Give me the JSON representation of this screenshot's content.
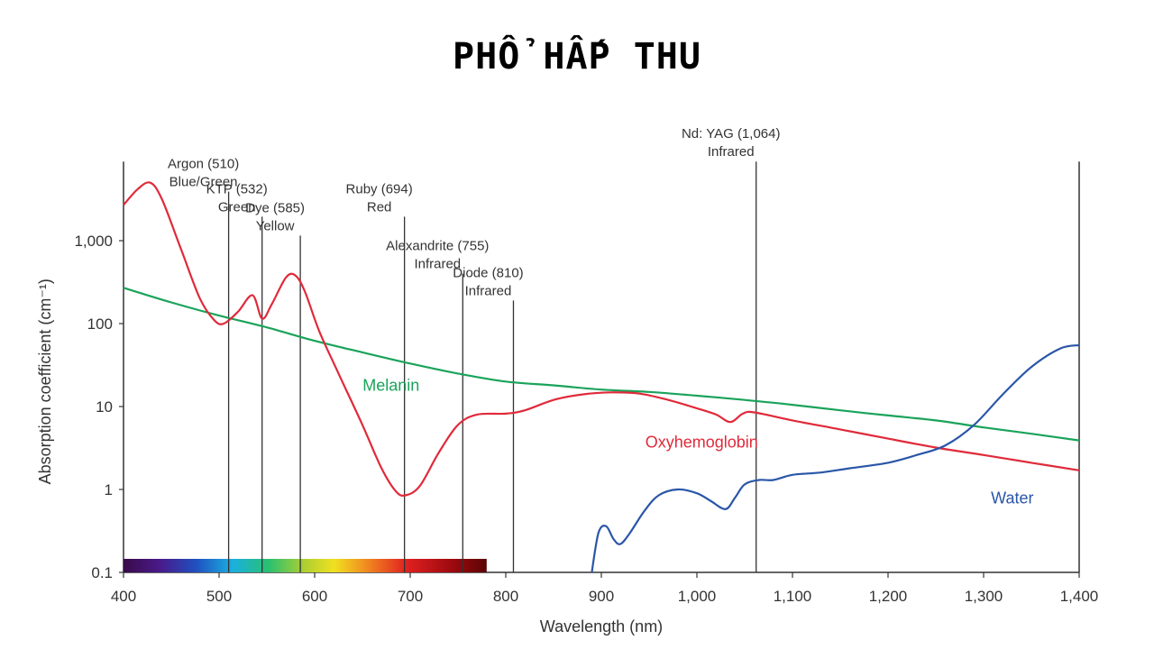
{
  "title": "PHỔ HẤP THU",
  "chart_data": {
    "type": "line",
    "xlabel": "Wavelength (nm)",
    "ylabel": "Absorption coefficient (cm⁻¹)",
    "xlim": [
      400,
      1400
    ],
    "ylim": [
      0.1,
      10000
    ],
    "yscale": "log",
    "grid": false,
    "x_ticks": [
      400,
      500,
      600,
      700,
      800,
      900,
      1000,
      1100,
      1200,
      1300,
      1400
    ],
    "x_tick_labels": [
      "400",
      "500",
      "600",
      "700",
      "800",
      "900",
      "1,000",
      "1,100",
      "1,200",
      "1,300",
      "1,400"
    ],
    "y_ticks": [
      0.1,
      1,
      10,
      100,
      1000
    ],
    "y_tick_labels": [
      "0.1",
      "1",
      "10",
      "100",
      "1,000"
    ],
    "series": [
      {
        "name": "Melanin",
        "color": "#1aa35a",
        "points": [
          [
            400,
            270
          ],
          [
            450,
            180
          ],
          [
            500,
            125
          ],
          [
            550,
            90
          ],
          [
            600,
            62
          ],
          [
            650,
            45
          ],
          [
            700,
            33
          ],
          [
            750,
            25
          ],
          [
            800,
            20
          ],
          [
            850,
            18
          ],
          [
            900,
            16
          ],
          [
            950,
            15
          ],
          [
            1000,
            13.5
          ],
          [
            1050,
            12
          ],
          [
            1100,
            10.5
          ],
          [
            1150,
            9
          ],
          [
            1200,
            7.8
          ],
          [
            1250,
            6.8
          ],
          [
            1300,
            5.6
          ],
          [
            1350,
            4.7
          ],
          [
            1400,
            3.9
          ]
        ]
      },
      {
        "name": "Oxyhemoglobin",
        "color": "#e02a3a",
        "points": [
          [
            400,
            2700
          ],
          [
            415,
            4200
          ],
          [
            428,
            5000
          ],
          [
            440,
            3200
          ],
          [
            460,
            800
          ],
          [
            480,
            200
          ],
          [
            495,
            110
          ],
          [
            505,
            100
          ],
          [
            520,
            140
          ],
          [
            535,
            220
          ],
          [
            545,
            115
          ],
          [
            555,
            170
          ],
          [
            570,
            360
          ],
          [
            580,
            380
          ],
          [
            590,
            240
          ],
          [
            605,
            80
          ],
          [
            625,
            25
          ],
          [
            650,
            6
          ],
          [
            670,
            1.8
          ],
          [
            685,
            0.95
          ],
          [
            695,
            0.85
          ],
          [
            710,
            1.1
          ],
          [
            730,
            2.8
          ],
          [
            750,
            6
          ],
          [
            770,
            8
          ],
          [
            800,
            8.2
          ],
          [
            820,
            9
          ],
          [
            850,
            12
          ],
          [
            880,
            14
          ],
          [
            910,
            14.8
          ],
          [
            940,
            14.3
          ],
          [
            970,
            12
          ],
          [
            1000,
            9.5
          ],
          [
            1020,
            8
          ],
          [
            1035,
            6.5
          ],
          [
            1048,
            8.2
          ],
          [
            1060,
            8.5
          ],
          [
            1100,
            6.8
          ],
          [
            1150,
            5.3
          ],
          [
            1200,
            4.1
          ],
          [
            1250,
            3.2
          ],
          [
            1300,
            2.6
          ],
          [
            1350,
            2.1
          ],
          [
            1400,
            1.7
          ]
        ]
      },
      {
        "name": "Water",
        "color": "#2a56a8",
        "points": [
          [
            890,
            0.1
          ],
          [
            897,
            0.3
          ],
          [
            905,
            0.36
          ],
          [
            913,
            0.25
          ],
          [
            920,
            0.22
          ],
          [
            930,
            0.3
          ],
          [
            945,
            0.55
          ],
          [
            960,
            0.85
          ],
          [
            980,
            1.0
          ],
          [
            1000,
            0.9
          ],
          [
            1015,
            0.72
          ],
          [
            1030,
            0.58
          ],
          [
            1040,
            0.8
          ],
          [
            1050,
            1.15
          ],
          [
            1065,
            1.3
          ],
          [
            1080,
            1.3
          ],
          [
            1100,
            1.5
          ],
          [
            1130,
            1.6
          ],
          [
            1160,
            1.8
          ],
          [
            1200,
            2.1
          ],
          [
            1230,
            2.6
          ],
          [
            1260,
            3.4
          ],
          [
            1290,
            6
          ],
          [
            1320,
            14
          ],
          [
            1350,
            30
          ],
          [
            1380,
            50
          ],
          [
            1400,
            55
          ]
        ]
      }
    ],
    "series_label_positions": {
      "Melanin": [
        680,
        15.5
      ],
      "Oxyhemoglobin": [
        1005,
        3.2
      ],
      "Water": [
        1330,
        0.68
      ]
    },
    "laser_lines": [
      {
        "x": 510,
        "label": "Argon (510)",
        "sublabel": "Blue/Green",
        "top_value": 3900
      },
      {
        "x": 545,
        "label": "KTP (532)",
        "sublabel": "Green",
        "top_value": 1950
      },
      {
        "x": 585,
        "label": "Dye (585)",
        "sublabel": "Yellow",
        "top_value": 1150
      },
      {
        "x": 694,
        "label": "Ruby (694)",
        "sublabel": "Red",
        "top_value": 1950
      },
      {
        "x": 755,
        "label": "Alexandrite (755)",
        "sublabel": "Infrared",
        "top_value": 400
      },
      {
        "x": 808,
        "label": "Diode (810)",
        "sublabel": "Infrared",
        "top_value": 190
      },
      {
        "x": 1062,
        "label": "Nd: YAG (1,064)",
        "sublabel": "Infrared",
        "top_value": 9000
      }
    ],
    "spectrum_bar": {
      "x_start": 400,
      "x_end": 780
    },
    "right_border_top_value": 9000
  }
}
